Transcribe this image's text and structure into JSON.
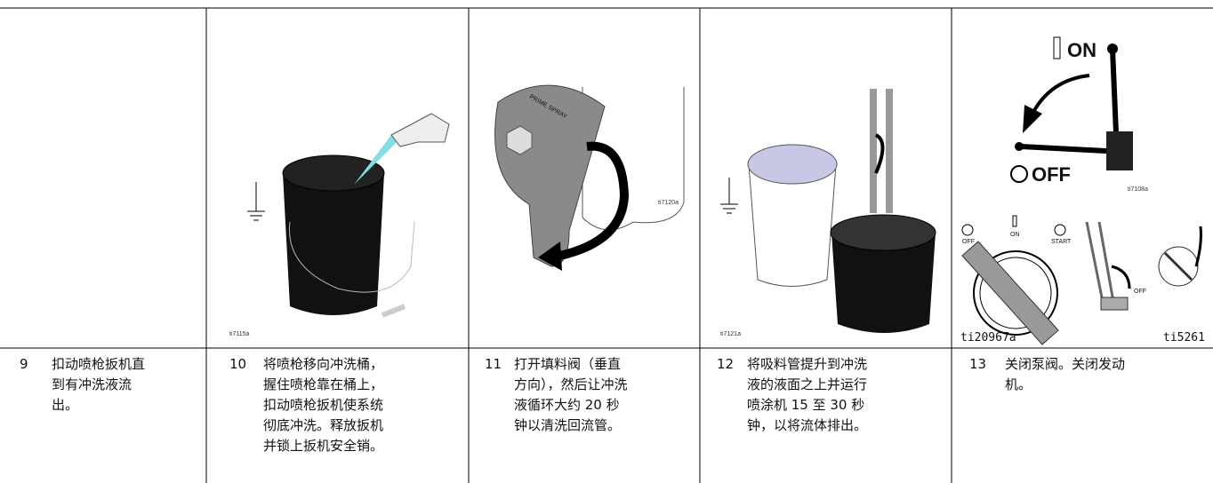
{
  "steps": [
    {
      "number": "9",
      "lines": [
        "扣动喷枪扳机直",
        "到有冲洗液流",
        "出。"
      ]
    },
    {
      "number": "10",
      "lines": [
        "将喷枪移向冲洗桶，",
        "握住喷枪靠在桶上，",
        "扣动喷枪扳机使系统",
        "彻底冲洗。释放扳机",
        "并锁上扳机安全销。"
      ],
      "figure_labels": [
        "ti7115a"
      ]
    },
    {
      "number": "11",
      "lines": [
        "打开填料阀（垂直",
        "方向），然后让冲洗",
        "液循环大约 20 秒",
        "钟以清洗回流管。"
      ],
      "figure_labels": [
        "ti7120a",
        "PRIME SPRAY"
      ]
    },
    {
      "number": "12",
      "lines": [
        "将吸料管提升到冲洗",
        "液的液面之上并运行",
        "喷涂机 15 至 30 秒",
        "钟，以将流体排出。"
      ],
      "figure_labels": [
        "ti7121a"
      ]
    },
    {
      "number": "13",
      "lines": [
        "关闭泵阀。关闭发动",
        "机。"
      ],
      "figure_labels": [
        "ON",
        "OFF",
        "ti7108a",
        "ON",
        "OFF",
        "START",
        "ti20967a",
        "OFF",
        "ti5261"
      ]
    }
  ]
}
